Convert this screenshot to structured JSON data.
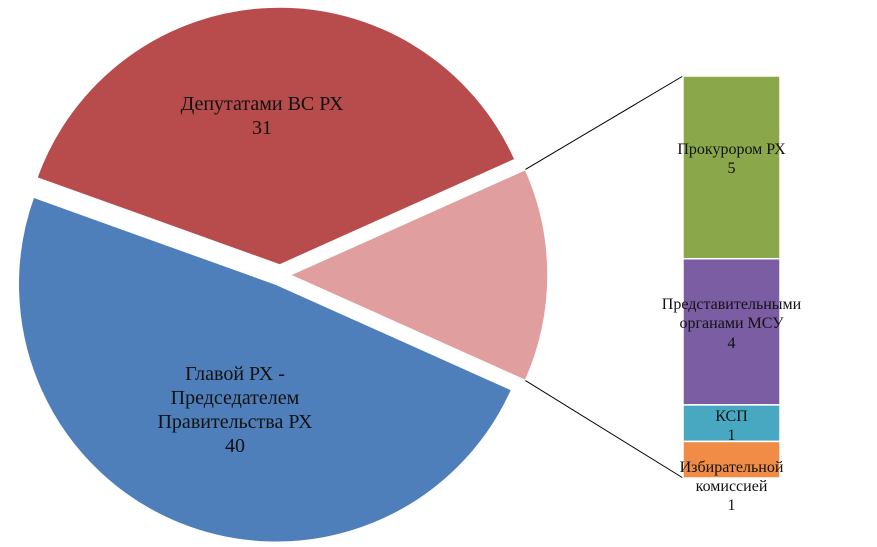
{
  "chart_data": {
    "type": "pie_of_bar",
    "pie": {
      "categories": [
        "Депутатами ВС РХ",
        "Главой РХ -\nПредседателем\nПравительства РХ"
      ],
      "values": [
        31,
        40
      ],
      "colors": [
        "#b84b4b",
        "#4f7fbb"
      ],
      "other_color": "#e09e9e"
    },
    "bar": {
      "categories": [
        "Прокурором РХ",
        "Представительными\nорганами МСУ",
        "КСП",
        "Избирательной\nкомиссией"
      ],
      "values": [
        5,
        4,
        1,
        1
      ],
      "colors": [
        "#8aa84a",
        "#7a5da3",
        "#48a8c2",
        "#f08c45"
      ]
    }
  }
}
